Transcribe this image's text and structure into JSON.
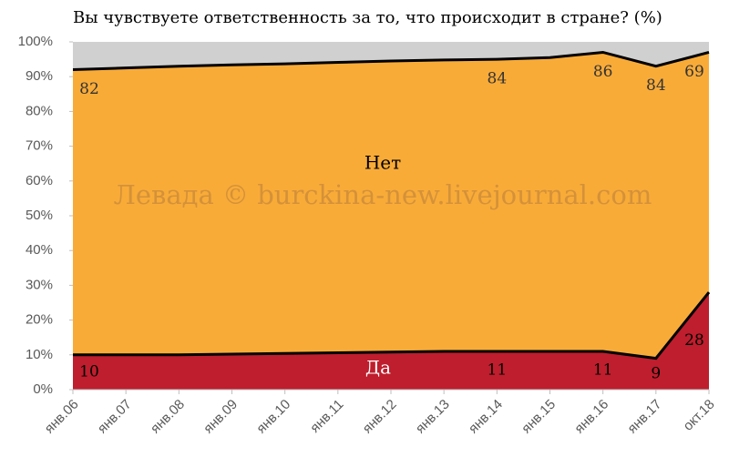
{
  "chart_data": {
    "type": "stacked_area",
    "title": "Вы чувствуете ответственность за то, что происходит в стране? (%)",
    "watermark": "Левада © burckina-new.livejournal.com",
    "categories": [
      "янв.06",
      "янв.07",
      "янв.08",
      "янв.09",
      "янв.10",
      "янв.11",
      "янв.12",
      "янв.13",
      "янв.14",
      "янв.15",
      "янв.16",
      "янв.17",
      "окт.18"
    ],
    "series": [
      {
        "name": "Да",
        "color": "#be1e2d",
        "values": [
          10,
          10,
          10,
          10.2,
          10.4,
          10.6,
          10.8,
          11,
          11,
          11,
          11,
          9,
          28
        ],
        "value_labels": [
          "10",
          null,
          null,
          null,
          null,
          null,
          null,
          null,
          "11",
          null,
          "11",
          "9",
          "28"
        ]
      },
      {
        "name": "Нет",
        "color": "#f9ab38",
        "values": [
          82,
          82.5,
          83,
          83.2,
          83.3,
          83.5,
          83.7,
          83.8,
          84,
          84.5,
          86,
          84,
          69
        ],
        "value_labels": [
          "82",
          null,
          null,
          null,
          null,
          null,
          null,
          null,
          "84",
          null,
          "86",
          "84",
          "69"
        ]
      },
      {
        "color": "#d0d0d0",
        "values": [
          8,
          7.5,
          7,
          6.6,
          6.3,
          5.9,
          5.5,
          5.2,
          5,
          4.5,
          3,
          7,
          3
        ]
      }
    ],
    "ylim": [
      0,
      100
    ],
    "yticks": [
      {
        "value": 0,
        "label": "0%"
      },
      {
        "value": 10,
        "label": "10%"
      },
      {
        "value": 20,
        "label": "20%"
      },
      {
        "value": 30,
        "label": "30%"
      },
      {
        "value": 40,
        "label": "40%"
      },
      {
        "value": 50,
        "label": "50%"
      },
      {
        "value": 60,
        "label": "60%"
      },
      {
        "value": 70,
        "label": "70%"
      },
      {
        "value": 80,
        "label": "80%"
      },
      {
        "value": 90,
        "label": "90%"
      },
      {
        "value": 100,
        "label": "100%"
      }
    ]
  }
}
